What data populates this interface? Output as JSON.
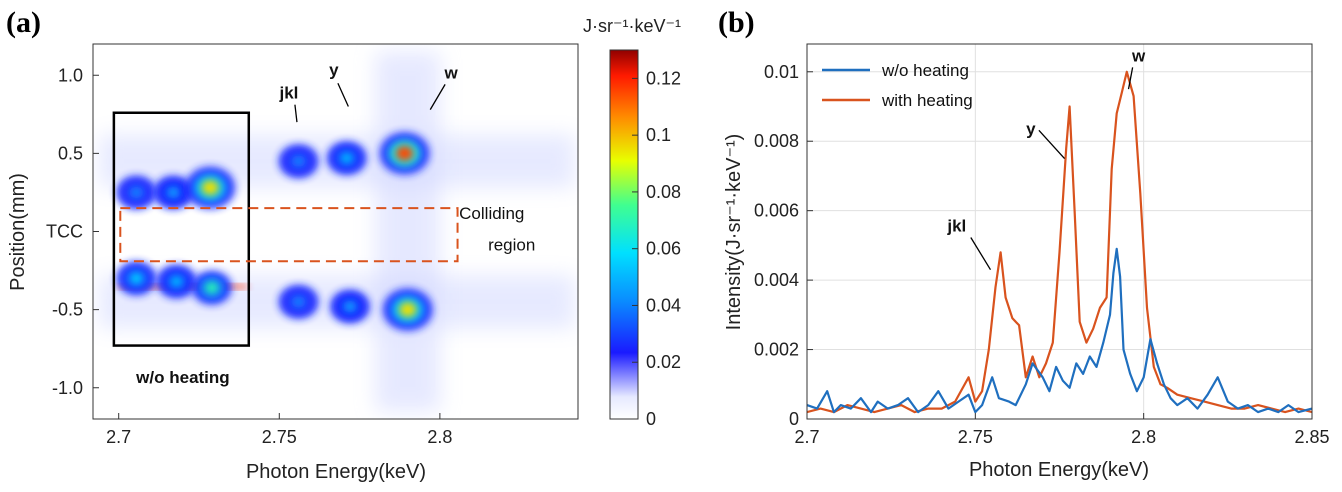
{
  "chart_data": [
    {
      "panel_label": "(a)",
      "type": "heatmap",
      "xlabel": "Photon Energy(keV)",
      "ylabel": "Position(mm)",
      "xlim": [
        2.692,
        2.843
      ],
      "ylim": [
        -1.2,
        1.2
      ],
      "x_ticks": [
        "2.7",
        "2.75",
        "2.8"
      ],
      "x_tick_values": [
        2.7,
        2.75,
        2.8
      ],
      "y_ticks": [
        "1.0",
        "0.5",
        "TCC",
        "-0.5",
        "-1.0"
      ],
      "y_tick_values": [
        1.0,
        0.5,
        0.0,
        -0.5,
        -1.0
      ],
      "colorbar": {
        "label": "J·sr⁻¹·keV⁻¹",
        "range": [
          0,
          0.13
        ],
        "ticks": [
          "0.12",
          "0.1",
          "0.08",
          "0.06",
          "0.04",
          "0.02",
          "0"
        ],
        "tick_values": [
          0.12,
          0.1,
          0.08,
          0.06,
          0.04,
          0.02,
          0
        ]
      },
      "spots": [
        {
          "x": 2.7055,
          "y": 0.25,
          "peak": 0.04
        },
        {
          "x": 2.717,
          "y": 0.25,
          "peak": 0.045
        },
        {
          "x": 2.7285,
          "y": 0.28,
          "peak": 0.095
        },
        {
          "x": 2.7055,
          "y": -0.3,
          "peak": 0.055
        },
        {
          "x": 2.718,
          "y": -0.32,
          "peak": 0.05
        },
        {
          "x": 2.729,
          "y": -0.36,
          "peak": 0.07
        },
        {
          "x": 2.756,
          "y": 0.45,
          "peak": 0.04
        },
        {
          "x": 2.771,
          "y": 0.47,
          "peak": 0.05
        },
        {
          "x": 2.789,
          "y": 0.5,
          "peak": 0.115
        },
        {
          "x": 2.756,
          "y": -0.45,
          "peak": 0.04
        },
        {
          "x": 2.772,
          "y": -0.48,
          "peak": 0.045
        },
        {
          "x": 2.79,
          "y": -0.5,
          "peak": 0.095
        }
      ],
      "annotations": [
        {
          "text": "jkl",
          "x": 2.753,
          "y": 0.85
        },
        {
          "text": "y",
          "x": 2.767,
          "y": 1.0
        },
        {
          "text": "w",
          "x": 2.8035,
          "y": 0.98
        },
        {
          "text": "Colliding",
          "x": 2.806,
          "y": 0.08
        },
        {
          "text": "region",
          "x": 2.815,
          "y": -0.12
        },
        {
          "text": "w/o heating",
          "x": 2.72,
          "y": -0.97
        }
      ],
      "boxes": [
        {
          "name": "w/o heating box",
          "x0": 2.6985,
          "x1": 2.7405,
          "y0": -0.73,
          "y1": 0.76
        },
        {
          "name": "colliding region box",
          "x0": 2.7005,
          "x1": 2.8055,
          "y0": -0.19,
          "y1": 0.15
        }
      ]
    },
    {
      "panel_label": "(b)",
      "type": "line",
      "xlabel": "Photon Energy(keV)",
      "ylabel": "Intensity(J·sr⁻¹·keV⁻¹)",
      "xlim": [
        2.7,
        2.85
      ],
      "ylim": [
        0,
        0.0108
      ],
      "x_ticks": [
        "2.7",
        "2.75",
        "2.8",
        "2.85"
      ],
      "x_tick_values": [
        2.7,
        2.75,
        2.8,
        2.85
      ],
      "y_ticks": [
        "0",
        "0.002",
        "0.004",
        "0.006",
        "0.008",
        "0.01"
      ],
      "y_tick_values": [
        0,
        0.002,
        0.004,
        0.006,
        0.008,
        0.01
      ],
      "grid": true,
      "legend_position": "top-left",
      "series": [
        {
          "name": "w/o heating",
          "color": "#1f6fbf",
          "x": [
            2.7,
            2.703,
            2.706,
            2.708,
            2.71,
            2.713,
            2.716,
            2.719,
            2.721,
            2.724,
            2.727,
            2.73,
            2.733,
            2.736,
            2.739,
            2.742,
            2.745,
            2.748,
            2.75,
            2.752,
            2.755,
            2.757,
            2.76,
            2.762,
            2.765,
            2.767,
            2.77,
            2.772,
            2.774,
            2.776,
            2.778,
            2.78,
            2.782,
            2.784,
            2.786,
            2.788,
            2.79,
            2.791,
            2.792,
            2.793,
            2.794,
            2.796,
            2.798,
            2.8,
            2.802,
            2.804,
            2.806,
            2.808,
            2.81,
            2.813,
            2.816,
            2.819,
            2.822,
            2.825,
            2.828,
            2.831,
            2.834,
            2.837,
            2.84,
            2.843,
            2.846,
            2.85
          ],
          "y": [
            0.0004,
            0.0003,
            0.0008,
            0.0002,
            0.0004,
            0.0003,
            0.0006,
            0.0002,
            0.0005,
            0.0003,
            0.0004,
            0.0006,
            0.0002,
            0.0004,
            0.0008,
            0.0003,
            0.0005,
            0.0007,
            0.0002,
            0.0004,
            0.0012,
            0.0006,
            0.0005,
            0.0004,
            0.001,
            0.0016,
            0.0012,
            0.0008,
            0.0015,
            0.0011,
            0.0009,
            0.0016,
            0.0013,
            0.0018,
            0.0015,
            0.0022,
            0.003,
            0.0042,
            0.0049,
            0.0041,
            0.002,
            0.0013,
            0.0008,
            0.0012,
            0.0023,
            0.0016,
            0.001,
            0.0006,
            0.0004,
            0.0006,
            0.0003,
            0.0007,
            0.0012,
            0.0005,
            0.0003,
            0.0004,
            0.0002,
            0.0003,
            0.0002,
            0.0004,
            0.0002,
            0.0003
          ]
        },
        {
          "name": "with heating",
          "color": "#d9531e",
          "x": [
            2.7,
            2.704,
            2.708,
            2.712,
            2.716,
            2.72,
            2.724,
            2.728,
            2.732,
            2.736,
            2.74,
            2.744,
            2.748,
            2.75,
            2.752,
            2.754,
            2.756,
            2.7575,
            2.759,
            2.761,
            2.763,
            2.765,
            2.767,
            2.769,
            2.771,
            2.773,
            2.775,
            2.777,
            2.778,
            2.7795,
            2.781,
            2.783,
            2.785,
            2.787,
            2.789,
            2.7905,
            2.792,
            2.7935,
            2.795,
            2.797,
            2.799,
            2.801,
            2.803,
            2.805,
            2.807,
            2.81,
            2.814,
            2.818,
            2.822,
            2.826,
            2.83,
            2.834,
            2.838,
            2.842,
            2.846,
            2.85
          ],
          "y": [
            0.0002,
            0.0003,
            0.0002,
            0.0004,
            0.0003,
            0.0002,
            0.0003,
            0.0004,
            0.0002,
            0.0003,
            0.0003,
            0.0005,
            0.0012,
            0.0005,
            0.0008,
            0.002,
            0.0038,
            0.0048,
            0.0035,
            0.0029,
            0.0027,
            0.0012,
            0.0018,
            0.0012,
            0.0016,
            0.0022,
            0.0048,
            0.0078,
            0.009,
            0.006,
            0.0028,
            0.0022,
            0.0026,
            0.0032,
            0.0035,
            0.0072,
            0.0088,
            0.0094,
            0.01,
            0.0093,
            0.0065,
            0.0032,
            0.0015,
            0.001,
            0.0009,
            0.0007,
            0.0006,
            0.0005,
            0.0004,
            0.0003,
            0.0003,
            0.0004,
            0.0003,
            0.0002,
            0.0003,
            0.0002
          ]
        }
      ],
      "annotations": [
        {
          "text": "jkl",
          "x": 2.7445,
          "y": 0.0054
        },
        {
          "text": "y",
          "x": 2.7665,
          "y": 0.0082
        },
        {
          "text": "w",
          "x": 2.7985,
          "y": 0.0103
        }
      ]
    }
  ]
}
